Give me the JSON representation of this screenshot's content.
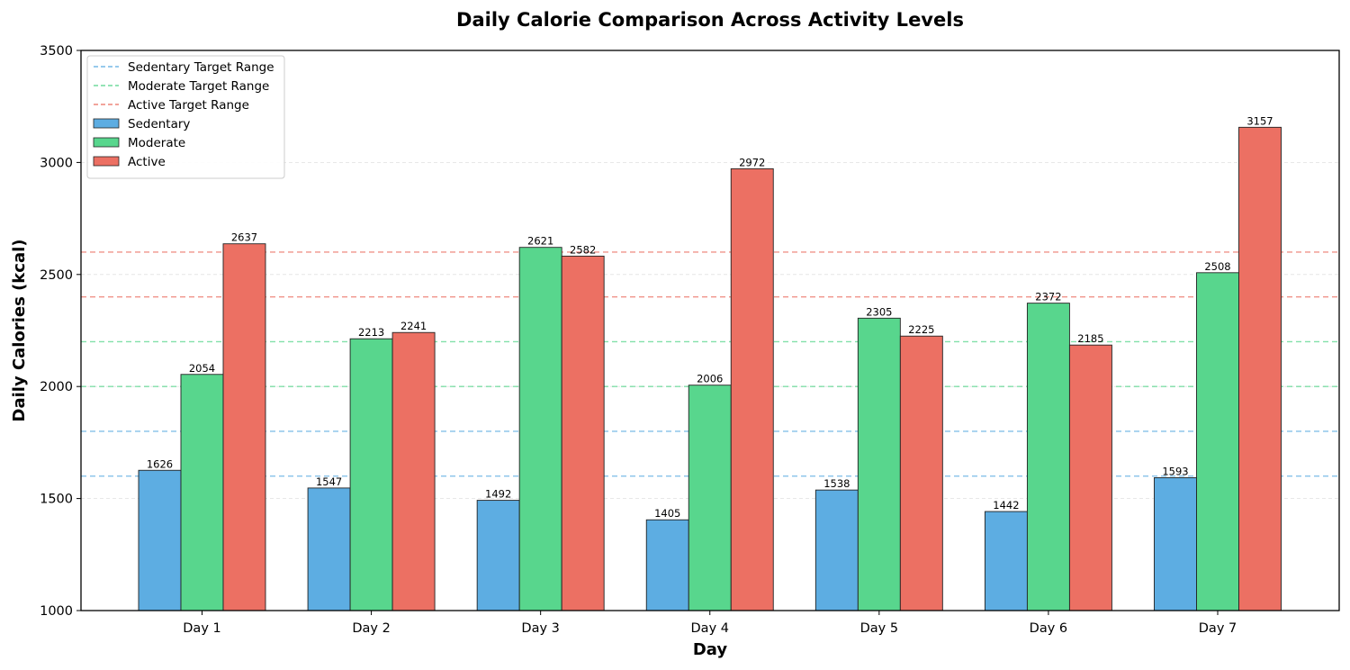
{
  "chart_data": {
    "type": "bar",
    "title": "Daily Calorie Comparison Across Activity Levels",
    "xlabel": "Day",
    "ylabel": "Daily Calories (kcal)",
    "ylim": [
      1000,
      3500
    ],
    "yticks": [
      "1000",
      "1500",
      "2000",
      "2500",
      "3000",
      "3500"
    ],
    "ytick_values": [
      1000,
      1500,
      2000,
      2500,
      3000,
      3500
    ],
    "grid": true,
    "legend_position": "top-left",
    "categories": [
      "Day 1",
      "Day 2",
      "Day 3",
      "Day 4",
      "Day 5",
      "Day 6",
      "Day 7"
    ],
    "series": [
      {
        "name": "Sedentary",
        "color": "#5DADE2",
        "values": [
          1626,
          1547,
          1492,
          1405,
          1538,
          1442,
          1593
        ]
      },
      {
        "name": "Moderate",
        "color": "#58D68D",
        "values": [
          2054,
          2213,
          2621,
          2006,
          2305,
          2372,
          2508
        ]
      },
      {
        "name": "Active",
        "color": "#EC7063",
        "values": [
          2637,
          2241,
          2582,
          2972,
          2225,
          2185,
          3157
        ]
      }
    ],
    "target_ranges": [
      {
        "name": "Sedentary Target Range",
        "color": "#5DADE2",
        "range": [
          1600,
          1800
        ]
      },
      {
        "name": "Moderate Target Range",
        "color": "#58D68D",
        "range": [
          2000,
          2200
        ]
      },
      {
        "name": "Active Target Range",
        "color": "#EC7063",
        "range": [
          2400,
          2600
        ]
      }
    ]
  }
}
